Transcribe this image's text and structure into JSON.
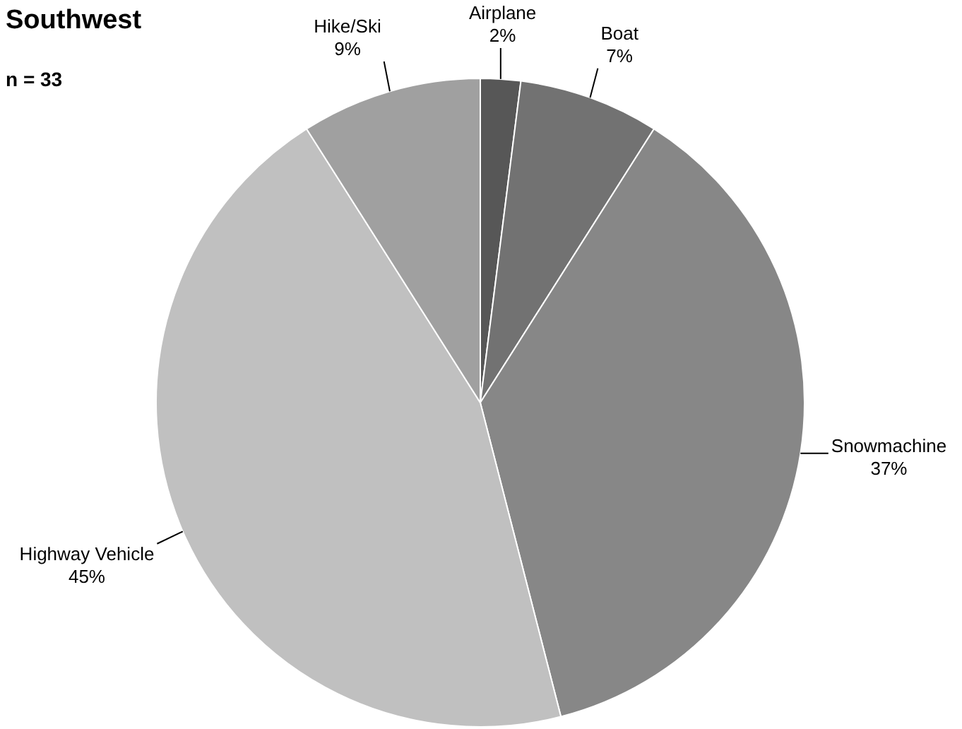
{
  "chart_data": {
    "type": "pie",
    "title": "Southwest",
    "subtitle": "n = 33",
    "categories": [
      "Airplane",
      "Boat",
      "Snowmachine",
      "Highway Vehicle",
      "Hike/Ski"
    ],
    "values": [
      2,
      7,
      37,
      45,
      9
    ],
    "colors": [
      "#575757",
      "#727272",
      "#878787",
      "#c0c0c0",
      "#a0a0a0"
    ],
    "value_labels": [
      "2%",
      "7%",
      "37%",
      "45%",
      "9%"
    ]
  }
}
